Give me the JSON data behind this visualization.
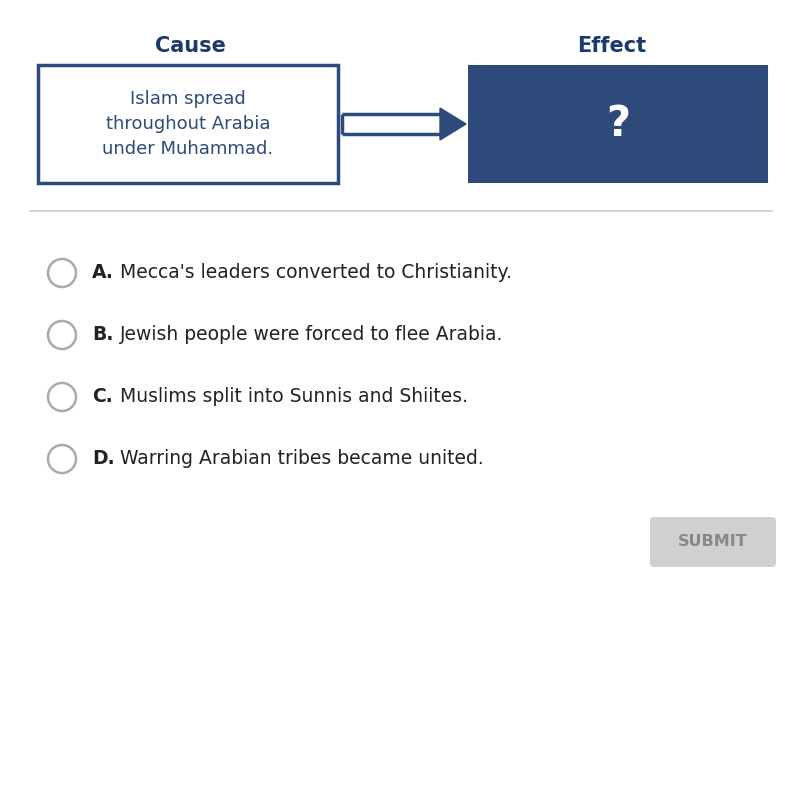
{
  "background_color": "#ffffff",
  "cause_label": "Cause",
  "effect_label": "Effect",
  "cause_text": "Islam spread\nthroughout Arabia\nunder Muhammad.",
  "effect_text": "?",
  "cause_box_color": "#ffffff",
  "cause_box_edgecolor": "#2d4a7a",
  "effect_box_color": "#2d4a7a",
  "effect_text_color": "#ffffff",
  "header_color": "#1a3a6b",
  "arrow_color": "#2d4a7a",
  "divider_color": "#cccccc",
  "options": [
    {
      "letter": "A.",
      "text": "Mecca's leaders converted to Christianity."
    },
    {
      "letter": "B.",
      "text": "Jewish people were forced to flee Arabia."
    },
    {
      "letter": "C.",
      "text": "Muslims split into Sunnis and Shiites."
    },
    {
      "letter": "D.",
      "text": "Warring Arabian tribes became united."
    }
  ],
  "submit_text": "SUBMIT",
  "submit_bg": "#d0d0d0",
  "submit_text_color": "#888888",
  "circle_color": "#ffffff",
  "circle_edgecolor": "#aaaaaa",
  "option_text_color": "#222222",
  "cause_text_color": "#2d4a7a"
}
